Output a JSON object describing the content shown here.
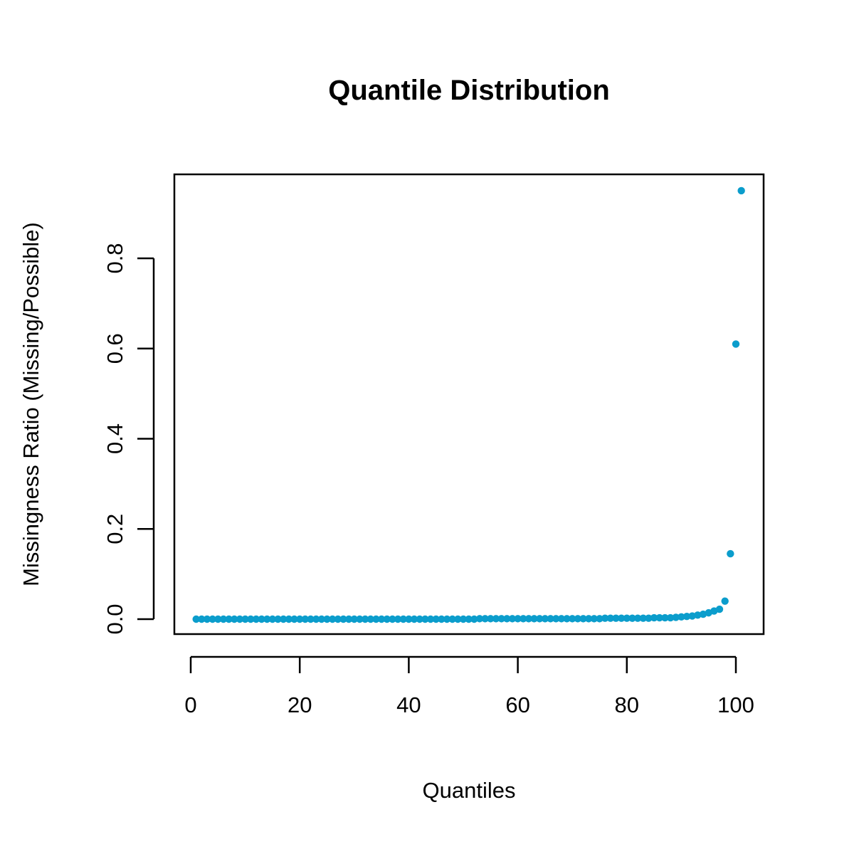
{
  "chart_data": {
    "type": "scatter",
    "title": "Quantile Distribution",
    "xlabel": "Quantiles",
    "ylabel": "Missingness Ratio (Missing/Possible)",
    "xlim": [
      0,
      104
    ],
    "ylim": [
      0,
      0.95
    ],
    "x_ticks": [
      0,
      20,
      40,
      60,
      80,
      100
    ],
    "x_tick_labels": [
      "0",
      "20",
      "40",
      "60",
      "80",
      "100"
    ],
    "y_ticks": [
      0.0,
      0.2,
      0.4,
      0.6,
      0.8
    ],
    "y_tick_labels": [
      "0.0",
      "0.2",
      "0.4",
      "0.6",
      "0.8"
    ],
    "grid": false,
    "point_color": "#0b9dcc",
    "series": [
      {
        "x": [
          1,
          2,
          3,
          4,
          5,
          6,
          7,
          8,
          9,
          10,
          11,
          12,
          13,
          14,
          15,
          16,
          17,
          18,
          19,
          20,
          21,
          22,
          23,
          24,
          25,
          26,
          27,
          28,
          29,
          30,
          31,
          32,
          33,
          34,
          35,
          36,
          37,
          38,
          39,
          40,
          41,
          42,
          43,
          44,
          45,
          46,
          47,
          48,
          49,
          50,
          51,
          52,
          53,
          54,
          55,
          56,
          57,
          58,
          59,
          60,
          61,
          62,
          63,
          64,
          65,
          66,
          67,
          68,
          69,
          70,
          71,
          72,
          73,
          74,
          75,
          76,
          77,
          78,
          79,
          80,
          81,
          82,
          83,
          84,
          85,
          86,
          87,
          88,
          89,
          90,
          91,
          92,
          93,
          94,
          95,
          96,
          97,
          98,
          99,
          100,
          101
        ],
        "y": [
          0.0,
          0.0,
          0.0,
          0.0,
          0.0,
          0.0,
          0.0,
          0.0,
          0.0,
          0.0,
          0.0,
          0.0,
          0.0,
          0.0,
          0.0,
          0.0,
          0.0,
          0.0,
          0.0,
          0.0,
          0.0,
          0.0,
          0.0,
          0.0,
          0.0,
          0.0,
          0.0,
          0.0,
          0.0,
          0.0,
          0.0,
          0.0,
          0.0,
          0.0,
          0.0,
          0.0,
          0.0,
          0.0,
          0.0,
          0.0,
          0.0,
          0.0,
          0.0,
          0.0,
          0.0,
          0.0,
          0.0,
          0.0,
          0.0,
          0.0,
          0.0,
          0.0,
          0.001,
          0.001,
          0.001,
          0.001,
          0.001,
          0.001,
          0.001,
          0.001,
          0.001,
          0.001,
          0.001,
          0.001,
          0.001,
          0.001,
          0.001,
          0.001,
          0.001,
          0.001,
          0.001,
          0.001,
          0.001,
          0.001,
          0.001,
          0.002,
          0.002,
          0.002,
          0.002,
          0.002,
          0.002,
          0.002,
          0.002,
          0.002,
          0.003,
          0.003,
          0.003,
          0.003,
          0.004,
          0.005,
          0.006,
          0.007,
          0.009,
          0.011,
          0.014,
          0.018,
          0.022,
          0.04,
          0.145,
          0.61,
          0.95
        ]
      }
    ]
  }
}
